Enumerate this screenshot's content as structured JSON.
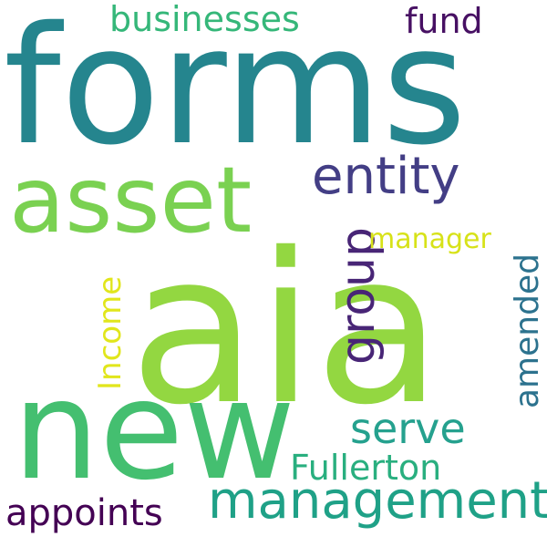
{
  "words": [
    {
      "text": "forms",
      "color": "#25858e"
    },
    {
      "text": "aia",
      "color": "#93d741"
    },
    {
      "text": "new",
      "color": "#44bf70"
    },
    {
      "text": "asset",
      "color": "#7ad151"
    },
    {
      "text": "management",
      "color": "#1fa187"
    },
    {
      "text": "entity",
      "color": "#433e85"
    },
    {
      "text": "group",
      "color": "#482576"
    },
    {
      "text": "serve",
      "color": "#25a18e"
    },
    {
      "text": "businesses",
      "color": "#35b779"
    },
    {
      "text": "fund",
      "color": "#471063"
    },
    {
      "text": "manager",
      "color": "#d7e219"
    },
    {
      "text": "Income",
      "color": "#e1e61c"
    },
    {
      "text": "amended",
      "color": "#2c728e"
    },
    {
      "text": "Fullerton",
      "color": "#29af7f"
    },
    {
      "text": "appoints",
      "color": "#440154"
    }
  ]
}
